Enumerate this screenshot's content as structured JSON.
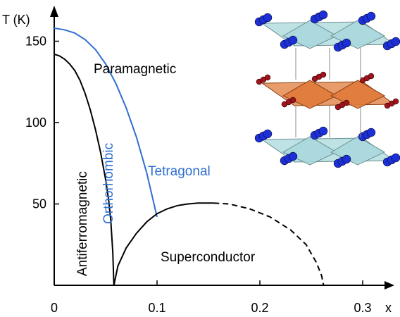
{
  "chart_data": {
    "type": "line",
    "xlabel": "x",
    "ylabel": "T (K)",
    "xlim": [
      0,
      0.32
    ],
    "ylim": [
      0,
      165
    ],
    "x_ticks": [
      "0",
      "0.1",
      "0.2",
      "0.3"
    ],
    "y_ticks": [
      "50",
      "100",
      "150"
    ],
    "x_tick_values": [
      0,
      0.1,
      0.2,
      0.3
    ],
    "y_tick_values": [
      50,
      100,
      150
    ],
    "series": [
      {
        "id": "neel",
        "color": "#000000",
        "dash": false,
        "points": [
          [
            0,
            142
          ],
          [
            0.005,
            141
          ],
          [
            0.01,
            139
          ],
          [
            0.015,
            136
          ],
          [
            0.02,
            132
          ],
          [
            0.025,
            126
          ],
          [
            0.03,
            118
          ],
          [
            0.035,
            108
          ],
          [
            0.04,
            96
          ],
          [
            0.045,
            82
          ],
          [
            0.05,
            65
          ],
          [
            0.053,
            52
          ],
          [
            0.055,
            40
          ],
          [
            0.057,
            20
          ],
          [
            0.058,
            0
          ]
        ]
      },
      {
        "id": "structural",
        "color": "#2f6fd0",
        "dash": false,
        "points": [
          [
            0,
            158
          ],
          [
            0.01,
            157
          ],
          [
            0.02,
            155
          ],
          [
            0.03,
            151
          ],
          [
            0.04,
            145
          ],
          [
            0.05,
            136
          ],
          [
            0.06,
            124
          ],
          [
            0.07,
            109
          ],
          [
            0.08,
            91
          ],
          [
            0.09,
            69
          ],
          [
            0.1,
            42
          ]
        ]
      },
      {
        "id": "superconducting",
        "color": "#000000",
        "dash": false,
        "points": [
          [
            0.058,
            0
          ],
          [
            0.062,
            12
          ],
          [
            0.07,
            23
          ],
          [
            0.08,
            32
          ],
          [
            0.09,
            39
          ],
          [
            0.1,
            44
          ],
          [
            0.11,
            47
          ],
          [
            0.12,
            49
          ],
          [
            0.13,
            50
          ],
          [
            0.14,
            50.5
          ],
          [
            0.155,
            50.5
          ]
        ]
      },
      {
        "id": "superconducting-extrapolated",
        "color": "#000000",
        "dash": true,
        "points": [
          [
            0.155,
            50.5
          ],
          [
            0.17,
            50
          ],
          [
            0.19,
            47
          ],
          [
            0.21,
            42
          ],
          [
            0.23,
            34
          ],
          [
            0.245,
            25
          ],
          [
            0.255,
            14
          ],
          [
            0.26,
            6
          ],
          [
            0.262,
            0
          ]
        ]
      }
    ],
    "annotations": [
      {
        "id": "paramagnetic",
        "text": "Paramagnetic",
        "color": "#000000"
      },
      {
        "id": "tetragonal",
        "text": "Tetragonal",
        "color": "#2f6fd0"
      },
      {
        "id": "orthorhombic",
        "text": "Orthorhombic",
        "color": "#2f6fd0"
      },
      {
        "id": "antiferromagnetic",
        "text": "Antiferromagnetic",
        "color": "#000000"
      },
      {
        "id": "superconductor",
        "text": "Superconductor",
        "color": "#000000"
      }
    ],
    "grid": false
  }
}
